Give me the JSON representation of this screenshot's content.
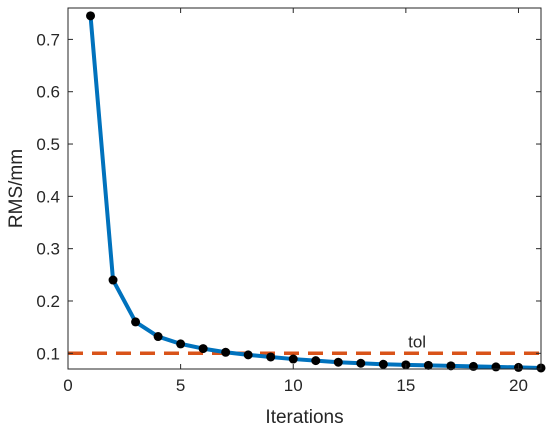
{
  "chart_data": {
    "type": "line",
    "xlabel": "Iterations",
    "ylabel": "RMS/mm",
    "xlim": [
      0,
      21
    ],
    "ylim": [
      0.07,
      0.76
    ],
    "xticks": [
      0,
      5,
      10,
      15,
      20
    ],
    "yticks": [
      0.1,
      0.2,
      0.3,
      0.4,
      0.5,
      0.6,
      0.7
    ],
    "xtick_labels": [
      "0",
      "5",
      "10",
      "15",
      "20"
    ],
    "ytick_labels": [
      "0.1",
      "0.2",
      "0.3",
      "0.4",
      "0.5",
      "0.6",
      "0.7"
    ],
    "grid": false,
    "series": [
      {
        "x": [
          1,
          2,
          3,
          4,
          5,
          6,
          7,
          8,
          9,
          10,
          11,
          12,
          13,
          14,
          15,
          16,
          17,
          18,
          19,
          20,
          21
        ],
        "y": [
          0.745,
          0.24,
          0.16,
          0.132,
          0.118,
          0.109,
          0.102,
          0.097,
          0.093,
          0.089,
          0.086,
          0.083,
          0.081,
          0.079,
          0.078,
          0.077,
          0.076,
          0.075,
          0.074,
          0.073,
          0.072
        ],
        "color": "#0072BD",
        "marker_color": "#000000"
      }
    ],
    "reference_line": {
      "y": 0.1,
      "label": "tol",
      "color": "#D95319",
      "style": "dashed"
    }
  }
}
